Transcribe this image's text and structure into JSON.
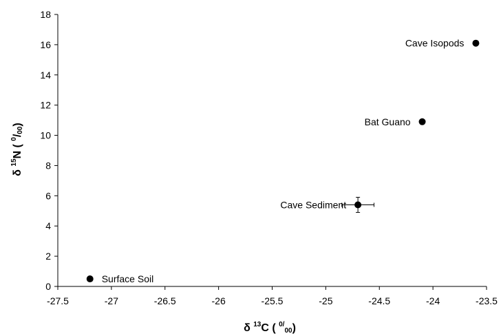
{
  "chart_data": {
    "type": "scatter",
    "title": "",
    "xlabel": {
      "prefix": "δ ",
      "sup1": "13",
      "main": "C ( ",
      "sup2": "0/",
      "sub": "00",
      "suffix": ")"
    },
    "ylabel": {
      "prefix": "δ ",
      "sup1": "15",
      "main": "N ( ",
      "sup2": "0",
      "slash": "/",
      "sub": "00",
      "suffix": ")"
    },
    "xlim": [
      -27.5,
      -23.5
    ],
    "ylim": [
      0,
      18
    ],
    "x_ticks": [
      "-27.5",
      "-27",
      "-26.5",
      "-26",
      "-25.5",
      "-25",
      "-24.5",
      "-24",
      "-23.5"
    ],
    "y_ticks": [
      "0",
      "2",
      "4",
      "6",
      "8",
      "10",
      "12",
      "14",
      "16",
      "18"
    ],
    "grid": false,
    "points": [
      {
        "label": "Surface Soil",
        "x": -27.2,
        "y": 0.5,
        "label_side": "right"
      },
      {
        "label": "Cave Sediment",
        "x": -24.7,
        "y": 5.4,
        "xerr": 0.15,
        "yerr": 0.5,
        "label_side": "left"
      },
      {
        "label": "Bat Guano",
        "x": -24.1,
        "y": 10.9,
        "label_side": "left"
      },
      {
        "label": "Cave Isopods",
        "x": -23.6,
        "y": 16.1,
        "label_side": "left"
      }
    ],
    "marker_color": "#000000"
  }
}
